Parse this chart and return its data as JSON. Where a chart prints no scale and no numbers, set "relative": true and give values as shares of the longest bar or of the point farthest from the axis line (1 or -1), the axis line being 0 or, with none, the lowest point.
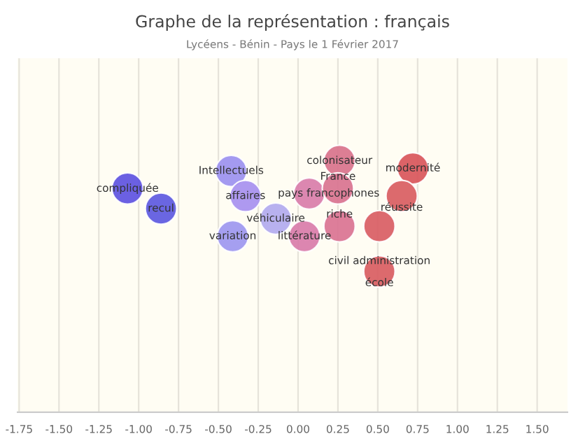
{
  "chart_data": {
    "type": "scatter",
    "title": "Graphe de la représentation : français",
    "subtitle": "Lycéens - Bénin - Pays le 1 Février 2017",
    "relative": true,
    "x": [
      -1.07,
      -0.86,
      -0.42,
      -0.33,
      -0.41,
      -0.14,
      0.07,
      0.04,
      0.26,
      0.25,
      0.26,
      0.51,
      0.72,
      0.65,
      0.51
    ],
    "values": [
      0.89,
      0.81,
      0.96,
      0.86,
      0.7,
      0.77,
      0.87,
      0.7,
      1,
      0.89,
      0.74,
      0.74,
      0.97,
      0.86,
      0.56
    ],
    "colors": [
      "#5b4fe0",
      "#5a55e0",
      "#9a8ff0",
      "#a58ef0",
      "#9b95f0",
      "#b0a8ee",
      "#d87aa8",
      "#d879a8",
      "#d8708a",
      "#d8708e",
      "#d97090",
      "#d85a60",
      "#d85258",
      "#d85a5e",
      "#d85a5e"
    ],
    "annotations": [
      {
        "text": "compliquée",
        "x": -1.07,
        "y": 0.89
      },
      {
        "text": "recul",
        "x": -0.86,
        "y": 0.81
      },
      {
        "text": "Intellectuels",
        "x": -0.42,
        "y": 0.96
      },
      {
        "text": "affaires",
        "x": -0.33,
        "y": 0.86
      },
      {
        "text": "variation",
        "x": -0.41,
        "y": 0.7
      },
      {
        "text": "véhiculaire",
        "x": -0.14,
        "y": 0.77
      },
      {
        "text": "pays francophones",
        "x": 0.07,
        "y": 0.87
      },
      {
        "text": "littérature",
        "x": 0.04,
        "y": 0.7
      },
      {
        "text": "colonisateur",
        "x": 0.26,
        "y": 1
      },
      {
        "text": "France",
        "x": 0.25,
        "y": 0.89
      },
      {
        "text": "riche",
        "x": 0.26,
        "y": 0.74
      },
      {
        "text": "civil administration",
        "x": 0.51,
        "y": 0.74
      },
      {
        "text": "modernité",
        "x": 0.72,
        "y": 0.97
      },
      {
        "text": "réussite",
        "x": 0.65,
        "y": 0.86
      },
      {
        "text": "école",
        "x": 0.51,
        "y": 0.56
      }
    ],
    "xlim": [
      -1.76,
      1.69
    ],
    "xticks": [
      {
        "value": -1.75,
        "label": "-1.75"
      },
      {
        "value": -1.5,
        "label": "-1.50"
      },
      {
        "value": -1.25,
        "label": "-1.25"
      },
      {
        "value": -1,
        "label": "-1.00"
      },
      {
        "value": -0.75,
        "label": "-0.75"
      },
      {
        "value": -0.5,
        "label": "-0.50"
      },
      {
        "value": -0.25,
        "label": "-0.25"
      },
      {
        "value": 0,
        "label": "0.00"
      },
      {
        "value": 0.25,
        "label": "0.25"
      },
      {
        "value": 0.5,
        "label": "0.50"
      },
      {
        "value": 0.75,
        "label": "0.75"
      },
      {
        "value": 1,
        "label": "1.00"
      },
      {
        "value": 1.25,
        "label": "1.25"
      },
      {
        "value": 1.5,
        "label": "1.50"
      }
    ],
    "grid": "x",
    "marker": "circle",
    "legend": false
  }
}
